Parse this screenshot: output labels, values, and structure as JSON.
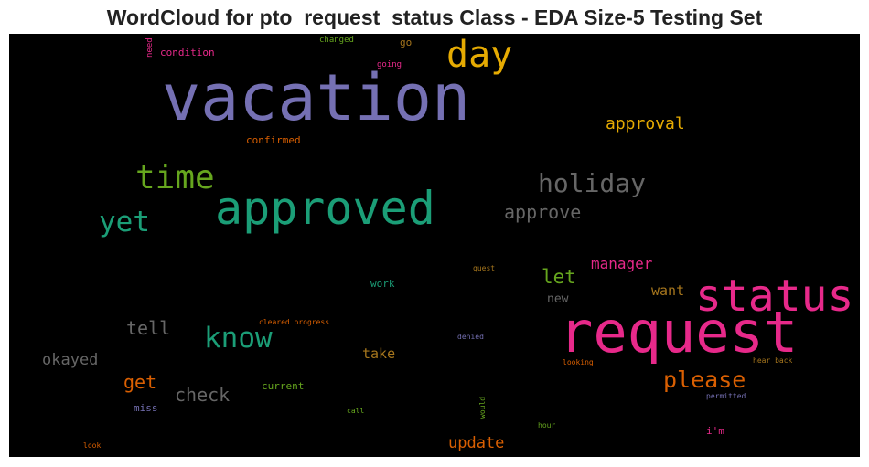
{
  "chart_data": {
    "type": "wordcloud",
    "title": "WordCloud for pto_request_status Class - EDA Size-5 Testing Set",
    "background": "#000000",
    "colormap": "Dark2",
    "words": [
      {
        "text": "vacation",
        "color": "#7570b3",
        "weight": 1.0
      },
      {
        "text": "request",
        "color": "#e7298a",
        "weight": 0.88
      },
      {
        "text": "approved",
        "color": "#1b9e77",
        "weight": 0.74
      },
      {
        "text": "status",
        "color": "#e7298a",
        "weight": 0.72
      },
      {
        "text": "day",
        "color": "#e6ab02",
        "weight": 0.6
      },
      {
        "text": "time",
        "color": "#66a61e",
        "weight": 0.54
      },
      {
        "text": "holiday",
        "color": "#666666",
        "weight": 0.45
      },
      {
        "text": "yet",
        "color": "#1b9e77",
        "weight": 0.45
      },
      {
        "text": "know",
        "color": "#1b9e77",
        "weight": 0.45
      },
      {
        "text": "please",
        "color": "#d95f02",
        "weight": 0.38
      },
      {
        "text": "approve",
        "color": "#666666",
        "weight": 0.33
      },
      {
        "text": "approval",
        "color": "#e6ab02",
        "weight": 0.3
      },
      {
        "text": "let",
        "color": "#66a61e",
        "weight": 0.3
      },
      {
        "text": "check",
        "color": "#666666",
        "weight": 0.3
      },
      {
        "text": "tell",
        "color": "#666666",
        "weight": 0.3
      },
      {
        "text": "get",
        "color": "#d95f02",
        "weight": 0.3
      },
      {
        "text": "okayed",
        "color": "#666666",
        "weight": 0.28
      },
      {
        "text": "update",
        "color": "#d95f02",
        "weight": 0.28
      },
      {
        "text": "manager",
        "color": "#e7298a",
        "weight": 0.26
      },
      {
        "text": "want",
        "color": "#a6761d",
        "weight": 0.26
      },
      {
        "text": "take",
        "color": "#a6761d",
        "weight": 0.26
      },
      {
        "text": "new",
        "color": "#666666",
        "weight": 0.22
      },
      {
        "text": "confirmed",
        "color": "#d95f02",
        "weight": 0.18
      },
      {
        "text": "condition",
        "color": "#e7298a",
        "weight": 0.18
      },
      {
        "text": "i'm",
        "color": "#e7298a",
        "weight": 0.17
      },
      {
        "text": "go",
        "color": "#a6761d",
        "weight": 0.17
      },
      {
        "text": "work",
        "color": "#1b9e77",
        "weight": 0.17
      },
      {
        "text": "current",
        "color": "#66a61e",
        "weight": 0.17
      },
      {
        "text": "miss",
        "color": "#7570b3",
        "weight": 0.17
      },
      {
        "text": "changed",
        "color": "#66a61e",
        "weight": 0.14
      },
      {
        "text": "going",
        "color": "#e7298a",
        "weight": 0.14
      },
      {
        "text": "need",
        "color": "#e7298a",
        "weight": 0.14
      },
      {
        "text": "quest",
        "color": "#a6761d",
        "weight": 0.13
      },
      {
        "text": "cleared progress",
        "color": "#d95f02",
        "weight": 0.13
      },
      {
        "text": "denied",
        "color": "#7570b3",
        "weight": 0.13
      },
      {
        "text": "looking",
        "color": "#d95f02",
        "weight": 0.13
      },
      {
        "text": "hear back",
        "color": "#a6761d",
        "weight": 0.13
      },
      {
        "text": "permitted",
        "color": "#7570b3",
        "weight": 0.13
      },
      {
        "text": "call",
        "color": "#66a61e",
        "weight": 0.13
      },
      {
        "text": "would",
        "color": "#66a61e",
        "weight": 0.13
      },
      {
        "text": "hour",
        "color": "#66a61e",
        "weight": 0.13
      },
      {
        "text": "look",
        "color": "#d95f02",
        "weight": 0.13
      }
    ]
  }
}
